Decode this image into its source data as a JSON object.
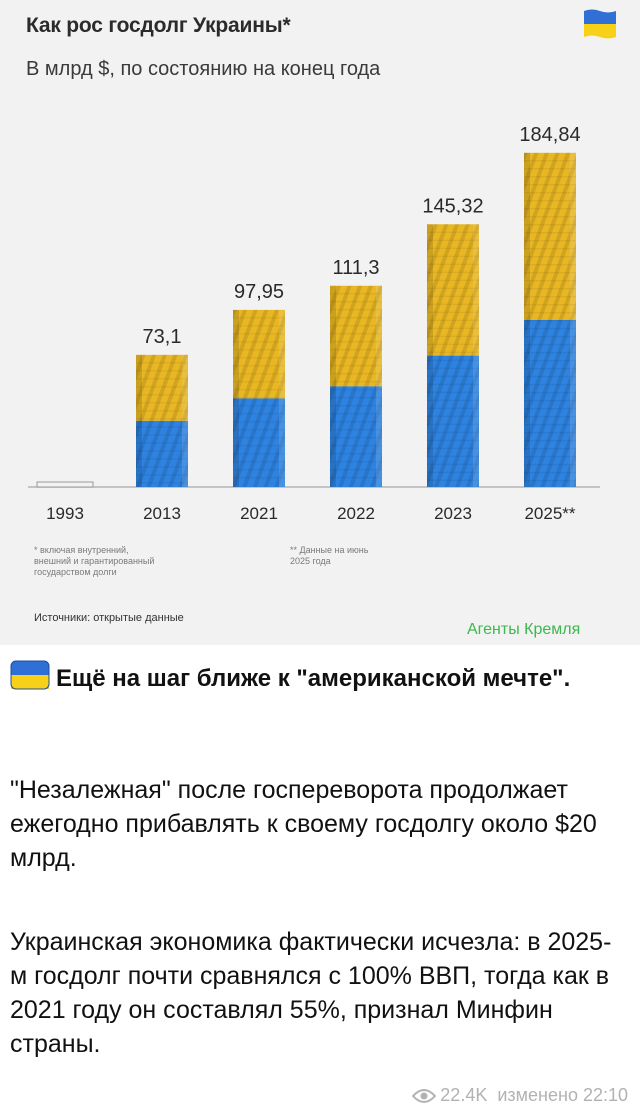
{
  "header": {
    "title": "Как рос госдолг Украины*",
    "subtitle": "В млрд $, по состоянию на конец года"
  },
  "chart_data": {
    "type": "bar",
    "title": "Как рос госдолг Украины*",
    "subtitle": "В млрд $, по состоянию на конец года",
    "categories": [
      "1993",
      "2013",
      "2021",
      "2022",
      "2023",
      "2025**"
    ],
    "values": [
      null,
      73.1,
      97.95,
      111.3,
      145.32,
      184.84
    ],
    "value_labels": [
      "",
      "73,1",
      "97,95",
      "111,3",
      "145,32",
      "184,84"
    ],
    "unit": "млрд $",
    "grid": false,
    "legend": "none"
  },
  "notes": {
    "left": [
      "* включая внутренний,",
      "внешний и гарантированный",
      "государством долги"
    ],
    "right": [
      "** Данные на июнь",
      "2025 года"
    ]
  },
  "source": "Источники: открытые данные",
  "watermark": "Агенты Кремля",
  "colors": {
    "flag_blue": "#2f6fd6",
    "flag_yellow": "#f7d117",
    "bar_yellow": "#e9b724",
    "bar_blue": "#2e82e0",
    "watermark": "#3cb84c"
  },
  "post": {
    "headline": "Ещё на шаг ближе к \"американской мечте\".",
    "paragraph1": "\"Незалежная\" после госпереворота продолжает ежегодно прибавлять к своему госдолгу около $20 млрд.",
    "paragraph2": "Украинская экономика фактически исчезла: в 2025-м госдолг почти сравнялся с 100% ВВП, тогда как в 2021 году он составлял 55%, признал Минфин страны.",
    "views": "22.4K",
    "edited": "изменено 22:10",
    "icons": [
      "flag-icon",
      "eye-icon"
    ]
  }
}
